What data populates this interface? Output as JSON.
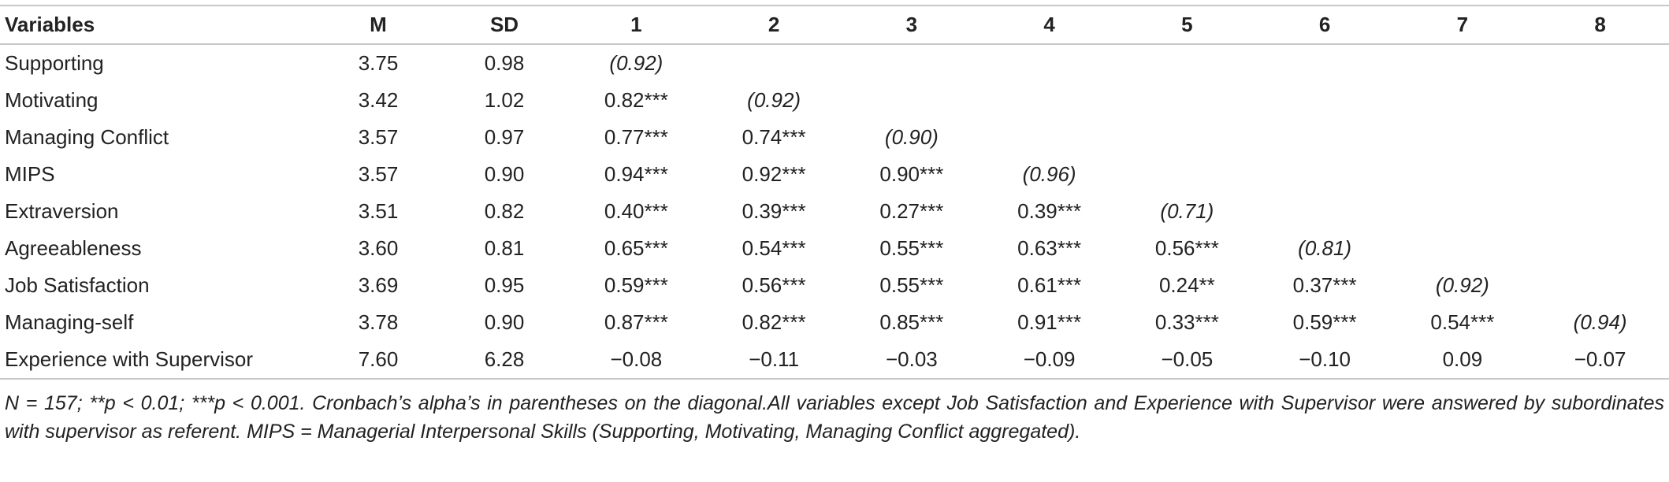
{
  "table": {
    "header": [
      "Variables",
      "M",
      "SD",
      "1",
      "2",
      "3",
      "4",
      "5",
      "6",
      "7",
      "8"
    ],
    "rows": [
      {
        "variable": "Supporting",
        "m": "3.75",
        "sd": "0.98",
        "cells": [
          "(0.92)"
        ]
      },
      {
        "variable": "Motivating",
        "m": "3.42",
        "sd": "1.02",
        "cells": [
          "0.82***",
          "(0.92)"
        ]
      },
      {
        "variable": "Managing Conflict",
        "m": "3.57",
        "sd": "0.97",
        "cells": [
          "0.77***",
          "0.74***",
          "(0.90)"
        ]
      },
      {
        "variable": "MIPS",
        "m": "3.57",
        "sd": "0.90",
        "cells": [
          "0.94***",
          "0.92***",
          "0.90***",
          "(0.96)"
        ]
      },
      {
        "variable": "Extraversion",
        "m": "3.51",
        "sd": "0.82",
        "cells": [
          "0.40***",
          "0.39***",
          "0.27***",
          "0.39***",
          "(0.71)"
        ]
      },
      {
        "variable": "Agreeableness",
        "m": "3.60",
        "sd": "0.81",
        "cells": [
          "0.65***",
          "0.54***",
          "0.55***",
          "0.63***",
          "0.56***",
          "(0.81)"
        ]
      },
      {
        "variable": "Job Satisfaction",
        "m": "3.69",
        "sd": "0.95",
        "cells": [
          "0.59***",
          "0.56***",
          "0.55***",
          "0.61***",
          "0.24**",
          "0.37***",
          "(0.92)"
        ]
      },
      {
        "variable": "Managing-self",
        "m": "3.78",
        "sd": "0.90",
        "cells": [
          "0.87***",
          "0.82***",
          "0.85***",
          "0.91***",
          "0.33***",
          "0.59***",
          "0.54***",
          "(0.94)"
        ]
      },
      {
        "variable": "Experience with Supervisor",
        "m": "7.60",
        "sd": "6.28",
        "cells": [
          "−0.08",
          "−0.11",
          "−0.03",
          "−0.09",
          "−0.05",
          "−0.10",
          "0.09",
          "−0.07"
        ]
      }
    ],
    "note": "N = 157; **p < 0.01; ***p < 0.001. Cronbach’s alpha’s in parentheses on the diagonal.All variables except Job Satisfaction and Experience with Supervisor were answered by subordinates with supervisor as referent. MIPS = Managerial Interpersonal Skills (Supporting, Motivating, Managing Conflict aggregated)."
  }
}
